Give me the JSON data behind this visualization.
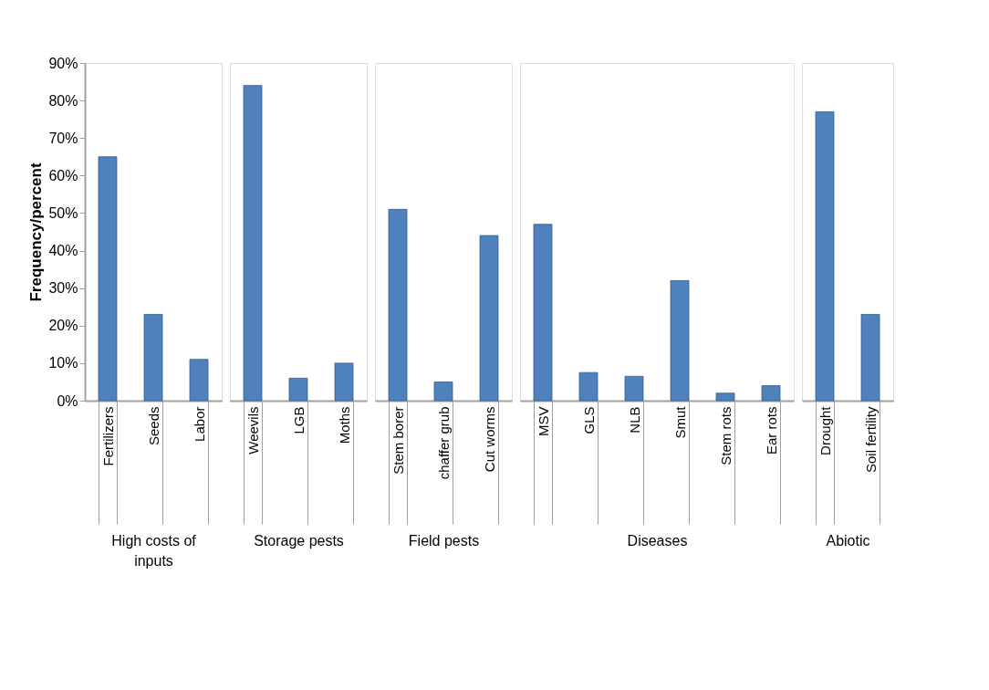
{
  "chart_data": [
    {
      "type": "bar",
      "ylabel": "Frequency/percent",
      "xlabel": "High costs of inputs",
      "categories": [
        "Fertilizers",
        "Seeds",
        "Labor"
      ],
      "values": [
        65,
        23,
        11
      ],
      "color": "#4f81bd",
      "ylim": [
        0,
        90
      ],
      "yticks": [
        {
          "value": 0,
          "label": "0%"
        },
        {
          "value": 10,
          "label": "10%"
        },
        {
          "value": 20,
          "label": "20%"
        },
        {
          "value": 30,
          "label": "30%"
        },
        {
          "value": 40,
          "label": "40%"
        },
        {
          "value": 50,
          "label": "50%"
        },
        {
          "value": 60,
          "label": "60%"
        },
        {
          "value": 70,
          "label": "70%"
        },
        {
          "value": 80,
          "label": "80%"
        },
        {
          "value": 90,
          "label": "90%"
        }
      ]
    },
    {
      "type": "bar",
      "xlabel": "Storage pests",
      "categories": [
        "Weevils",
        "LGB",
        "Moths"
      ],
      "values": [
        84,
        6,
        10
      ],
      "color": "#4f81bd",
      "ylim": [
        0,
        90
      ],
      "tick_labels": "x"
    },
    {
      "type": "bar",
      "xlabel": "Field pests",
      "categories": [
        "Stem borer",
        "chaffer grub",
        "Cut worms"
      ],
      "values": [
        51,
        5,
        44
      ],
      "color": "#4f81bd",
      "ylim": [
        0,
        90
      ],
      "tick_labels": "x"
    },
    {
      "type": "bar",
      "xlabel": "Diseases",
      "categories": [
        "MSV",
        "GLS",
        "NLB",
        "Smut",
        "Stem rots",
        "Ear rots"
      ],
      "values": [
        47,
        7.5,
        6.5,
        32,
        2,
        4
      ],
      "color": "#4f81bd",
      "ylim": [
        0,
        90
      ],
      "tick_labels": "x"
    },
    {
      "type": "bar",
      "xlabel": "Abiotic",
      "categories": [
        "Drought",
        "Soil fertility"
      ],
      "values": [
        77,
        23
      ],
      "color": "#4f81bd",
      "ylim": [
        0,
        90
      ],
      "tick_labels": "x"
    }
  ]
}
